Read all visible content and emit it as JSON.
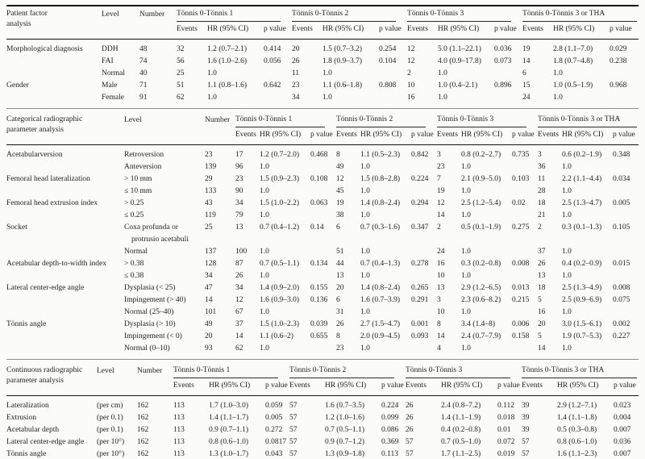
{
  "table": {
    "group_headers": [
      "Tönnis 0-Tönnis 1",
      "Tönnis 0-Tönnis 2",
      "Tönnis 0-Tönnis 3",
      "Tönnis 0-Tönnis 3 or THA"
    ],
    "sub_headers": [
      "Events",
      "HR (95% CI)",
      "p value"
    ],
    "sections": [
      {
        "title": "Patient factor analysis",
        "level_header": "Level",
        "number_header": "Number",
        "rows": [
          {
            "factor": "Morphological diagnosis",
            "level": "DDH",
            "number": "48",
            "cells": [
              "32",
              "1.2 (0.7–2.1)",
              "0.414",
              "20",
              "1.5 (0.7–3.2)",
              "0.254",
              "12",
              "5.0 (1.1–22.1)",
              "0.036",
              "19",
              "2.8 (1.1–7.0)",
              "0.029"
            ]
          },
          {
            "factor": "",
            "level": "FAI",
            "number": "74",
            "cells": [
              "56",
              "1.6 (1.0–2.6)",
              "0.056",
              "26",
              "1.8 (0.9–3.7)",
              "0.104",
              "12",
              "4.0 (0.9–17.8)",
              "0.073",
              "14",
              "1.8 (0.7–4.8)",
              "0.238"
            ]
          },
          {
            "factor": "",
            "level": "Normal",
            "number": "40",
            "cells": [
              "25",
              "1.0",
              "",
              "11",
              "1.0",
              "",
              "2",
              "1.0",
              "",
              "6",
              "1.0",
              ""
            ]
          },
          {
            "factor": "Gender",
            "level": "Male",
            "number": "71",
            "cells": [
              "51",
              "1.1 (0.8–1.6)",
              "0.642",
              "23",
              "1.1 (0.6–1.8)",
              "0.808",
              "10",
              "1.0 (0.4–2.1)",
              "0.896",
              "15",
              "1.0 (0.5–1.9)",
              "0.968"
            ]
          },
          {
            "factor": "",
            "level": "Female",
            "number": "91",
            "cells": [
              "62",
              "1.0",
              "",
              "34",
              "1.0",
              "",
              "16",
              "1.0",
              "",
              "24",
              "1.0",
              ""
            ]
          }
        ]
      },
      {
        "title": "Categorical radiographic parameter analysis",
        "level_header": "Level",
        "number_header": "Number",
        "rows": [
          {
            "factor": "Acetabularversion",
            "level": "Retroversion",
            "number": "23",
            "cells": [
              "17",
              "1.2 (0.7–2.0)",
              "0.468",
              "8",
              "1.1 (0.5–2.3)",
              "0.842",
              "3",
              "0.8 (0.2–2.7)",
              "0.735",
              "3",
              "0.6 (0.2–1.9)",
              "0.348"
            ]
          },
          {
            "factor": "",
            "level": "Anteversion",
            "number": "139",
            "cells": [
              "96",
              "1.0",
              "",
              "49",
              "1.0",
              "",
              "23",
              "1.0",
              "",
              "36",
              "1.0",
              ""
            ]
          },
          {
            "factor": "Femoral head lateralization",
            "level": "> 10 mm",
            "number": "29",
            "cells": [
              "23",
              "1.5 (0.9–2.3)",
              "0.108",
              "12",
              "1.5 (0.8–2.8)",
              "0.224",
              "7",
              "2.1 (0.9–5.0)",
              "0.103",
              "11",
              "2.2 (1.1–4.4)",
              "0.034"
            ]
          },
          {
            "factor": "",
            "level": "≤ 10 mm",
            "number": "133",
            "cells": [
              "90",
              "1.0",
              "",
              "45",
              "1.0",
              "",
              "19",
              "1.0",
              "",
              "28",
              "1.0",
              ""
            ]
          },
          {
            "factor": "Femoral head extrusion index",
            "level": "> 0.25",
            "number": "43",
            "cells": [
              "34",
              "1.5 (1.0–2.2)",
              "0.063",
              "19",
              "1.4 (0.8–2.4)",
              "0.294",
              "12",
              "2.5 (1.2–5.4)",
              "0.02",
              "18",
              "2.5 (1.3–4.7)",
              "0.005"
            ]
          },
          {
            "factor": "",
            "level": "≤ 0.25",
            "number": "119",
            "cells": [
              "79",
              "1.0",
              "",
              "38",
              "1.0",
              "",
              "14",
              "1.0",
              "",
              "21",
              "1.0",
              ""
            ]
          },
          {
            "factor": "Socket",
            "level": "Coxa profunda or protrusio acetabuli",
            "number": "25",
            "cells": [
              "13",
              "0.7 (0.4–1.2)",
              "0.14",
              "6",
              "0.7 (0.3–1.6)",
              "0.347",
              "2",
              "0.5 (0.1–1.9)",
              "0.275",
              "2",
              "0.3 (0.1–1.3)",
              "0.105"
            ]
          },
          {
            "factor": "",
            "level": "Normal",
            "number": "137",
            "cells": [
              "100",
              "1.0",
              "",
              "51",
              "1.0",
              "",
              "24",
              "1.0",
              "",
              "37",
              "1.0",
              ""
            ]
          },
          {
            "factor": "Acetabular depth-to-width index",
            "level": "> 0.38",
            "number": "128",
            "cells": [
              "87",
              "0.7 (0.5–1.1)",
              "0.134",
              "44",
              "0.7 (0.4–1.3)",
              "0.278",
              "16",
              "0.3 (0.2–0.8)",
              "0.008",
              "26",
              "0.4 (0.2–0.9)",
              "0.015"
            ]
          },
          {
            "factor": "",
            "level": "≤ 0.38",
            "number": "34",
            "cells": [
              "26",
              "1.0",
              "",
              "13",
              "1.0",
              "",
              "10",
              "1.0",
              "",
              "13",
              "1.0",
              ""
            ]
          },
          {
            "factor": "Lateral center-edge angle",
            "level": "Dysplasia (< 25)",
            "number": "47",
            "cells": [
              "34",
              "1.4 (0.9–2.0)",
              "0.155",
              "20",
              "1.4 (0.8–2.4)",
              "0.265",
              "13",
              "2.9 (1.2–6.5)",
              "0.013",
              "18",
              "2.5 (1.3–4.9)",
              "0.008"
            ]
          },
          {
            "factor": "",
            "level": "Impingement (> 40)",
            "number": "14",
            "cells": [
              "12",
              "1.6 (0.9–3.0)",
              "0.136",
              "6",
              "1.6 (0.7–3.9)",
              "0.291",
              "3",
              "2.3 (0.6–8.2)",
              "0.215",
              "5",
              "2.5 (0.9–6.9)",
              "0.075"
            ]
          },
          {
            "factor": "",
            "level": "Normal (25–40)",
            "number": "101",
            "cells": [
              "67",
              "1.0",
              "",
              "31",
              "1.0",
              "",
              "10",
              "1.0",
              "",
              "16",
              "1.0",
              ""
            ]
          },
          {
            "factor": "Tönnis angle",
            "level": "Dysplasia (> 10)",
            "number": "49",
            "cells": [
              "37",
              "1.5 (1.0–2.3)",
              "0.039",
              "26",
              "2.7 (1.5–4.7)",
              "0.001",
              "8",
              "3.4 (1.4–8)",
              "0.006",
              "20",
              "3.0 (1.5–6.1)",
              "0.002"
            ]
          },
          {
            "factor": "",
            "level": "Impingement (< 0)",
            "number": "20",
            "cells": [
              "14",
              "1.1 (0.6–2)",
              "0.655",
              "8",
              "2.0 (0.9–4.5)",
              "0.093",
              "14",
              "2.4 (0.7–7.9)",
              "0.158",
              "5",
              "1.9 (0.7–5.3)",
              "0.227"
            ]
          },
          {
            "factor": "",
            "level": "Normal (0–10)",
            "number": "93",
            "cells": [
              "62",
              "1.0",
              "",
              "23",
              "1.0",
              "",
              "4",
              "1.0",
              "",
              "14",
              "1.0",
              ""
            ]
          }
        ]
      },
      {
        "title": "Continuous radiographic parameter analysis",
        "level_header": "Level",
        "number_header": "Number",
        "rows": [
          {
            "factor": "Lateralization",
            "level": "(per cm)",
            "number": "162",
            "cells": [
              "113",
              "1.7 (1.0–3.0)",
              "0.059",
              "57",
              "1.6 (0.7–3.5)",
              "0.224",
              "26",
              "2.4 (0.8–7.2)",
              "0.112",
              "39",
              "2.9 (1.2–7.1)",
              "0.023"
            ]
          },
          {
            "factor": "Extrusion",
            "level": "(per 0.1)",
            "number": "162",
            "cells": [
              "113",
              "1.4 (1.1–1.7)",
              "0.005",
              "57",
              "1.2 (1.0–1.6)",
              "0.099",
              "26",
              "1.4 (1.1–1.9)",
              "0.018",
              "39",
              "1.4 (1.1–1.8)",
              "0.004"
            ]
          },
          {
            "factor": "Acetabular depth",
            "level": "(per 0.1)",
            "number": "162",
            "cells": [
              "113",
              "0.9 (0.7–1.1)",
              "0.272",
              "57",
              "0.7 (0.5–1.1)",
              "0.086",
              "26",
              "0.4 (0.2–0.8)",
              "0.01",
              "39",
              "0.5 (0.3–0.8)",
              "0.007"
            ]
          },
          {
            "factor": "Lateral center-edge angle",
            "level": "(per 10°)",
            "number": "162",
            "cells": [
              "113",
              "0.8 (0.6–1.0)",
              "0.0817",
              "57",
              "0.9 (0.7–1.2)",
              "0.369",
              "57",
              "0.7 (0.5–1.0)",
              "0.072",
              "57",
              "0.8 (0.6–1.0)",
              "0.036"
            ]
          },
          {
            "factor": "Tönnis angle",
            "level": "(per 10°)",
            "number": "162",
            "cells": [
              "113",
              "1.3 (1.0–1.7)",
              "0.043",
              "57",
              "1.3 (0.9–1.8)",
              "0.113",
              "57",
              "1.7 (1.1–2.5)",
              "0.019",
              "57",
              "1.6 (1.1–2.3)",
              "0.007"
            ]
          }
        ]
      }
    ]
  }
}
